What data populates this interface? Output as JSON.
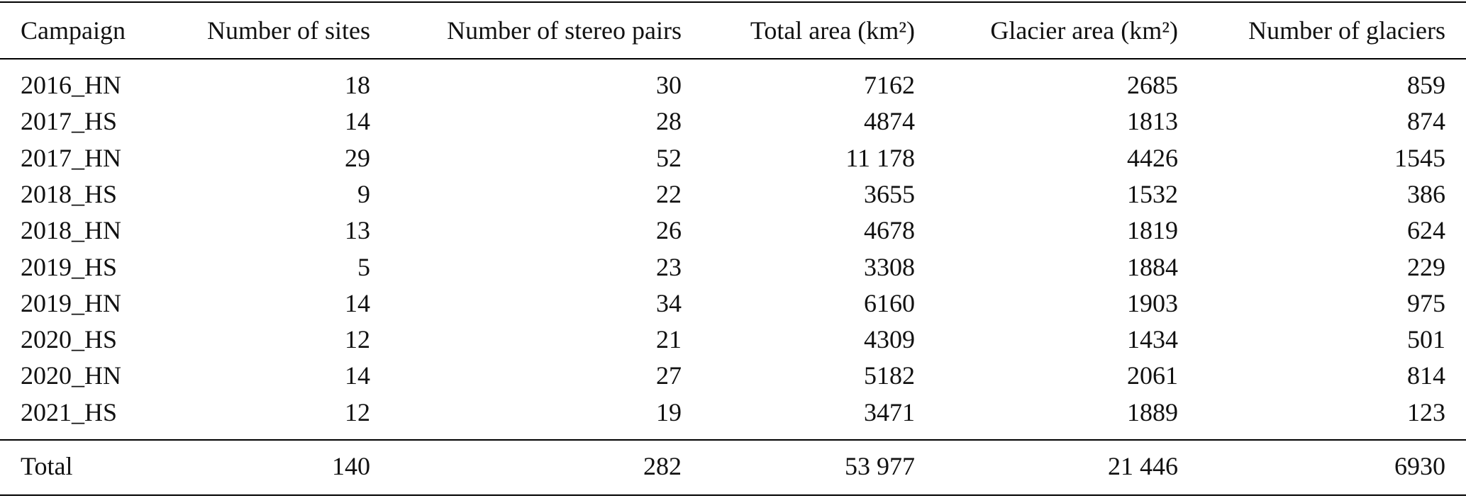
{
  "table": {
    "header": [
      "Campaign",
      "Number of sites",
      "Number of stereo pairs",
      "Total area (km²)",
      "Glacier area (km²)",
      "Number of glaciers"
    ],
    "rows": [
      [
        "2016_HN",
        "18",
        "30",
        "7162",
        "2685",
        "859"
      ],
      [
        "2017_HS",
        "14",
        "28",
        "4874",
        "1813",
        "874"
      ],
      [
        "2017_HN",
        "29",
        "52",
        "11 178",
        "4426",
        "1545"
      ],
      [
        "2018_HS",
        "9",
        "22",
        "3655",
        "1532",
        "386"
      ],
      [
        "2018_HN",
        "13",
        "26",
        "4678",
        "1819",
        "624"
      ],
      [
        "2019_HS",
        "5",
        "23",
        "3308",
        "1884",
        "229"
      ],
      [
        "2019_HN",
        "14",
        "34",
        "6160",
        "1903",
        "975"
      ],
      [
        "2020_HS",
        "12",
        "21",
        "4309",
        "1434",
        "501"
      ],
      [
        "2020_HN",
        "14",
        "27",
        "5182",
        "2061",
        "814"
      ],
      [
        "2021_HS",
        "12",
        "19",
        "3471",
        "1889",
        "123"
      ]
    ],
    "total": [
      "Total",
      "140",
      "282",
      "53 977",
      "21 446",
      "6930"
    ]
  }
}
